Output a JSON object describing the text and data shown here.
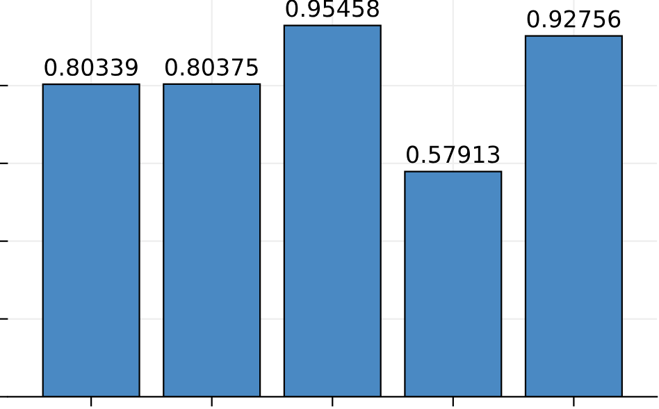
{
  "chart_data": {
    "type": "bar",
    "categories": [
      null,
      null,
      null,
      null,
      null
    ],
    "values": [
      0.80339,
      0.80375,
      0.95458,
      0.57913,
      0.92756
    ],
    "color": "#4a89c3",
    "data_labels": true,
    "ylim": [
      0,
      1.02
    ],
    "yticks": [
      {
        "value": 0,
        "label": null
      },
      {
        "value": 0.2,
        "label": null
      },
      {
        "value": 0.4,
        "label": null
      },
      {
        "value": 0.6,
        "label": null
      },
      {
        "value": 0.8,
        "label": null
      }
    ],
    "grid": true,
    "legend": false
  }
}
